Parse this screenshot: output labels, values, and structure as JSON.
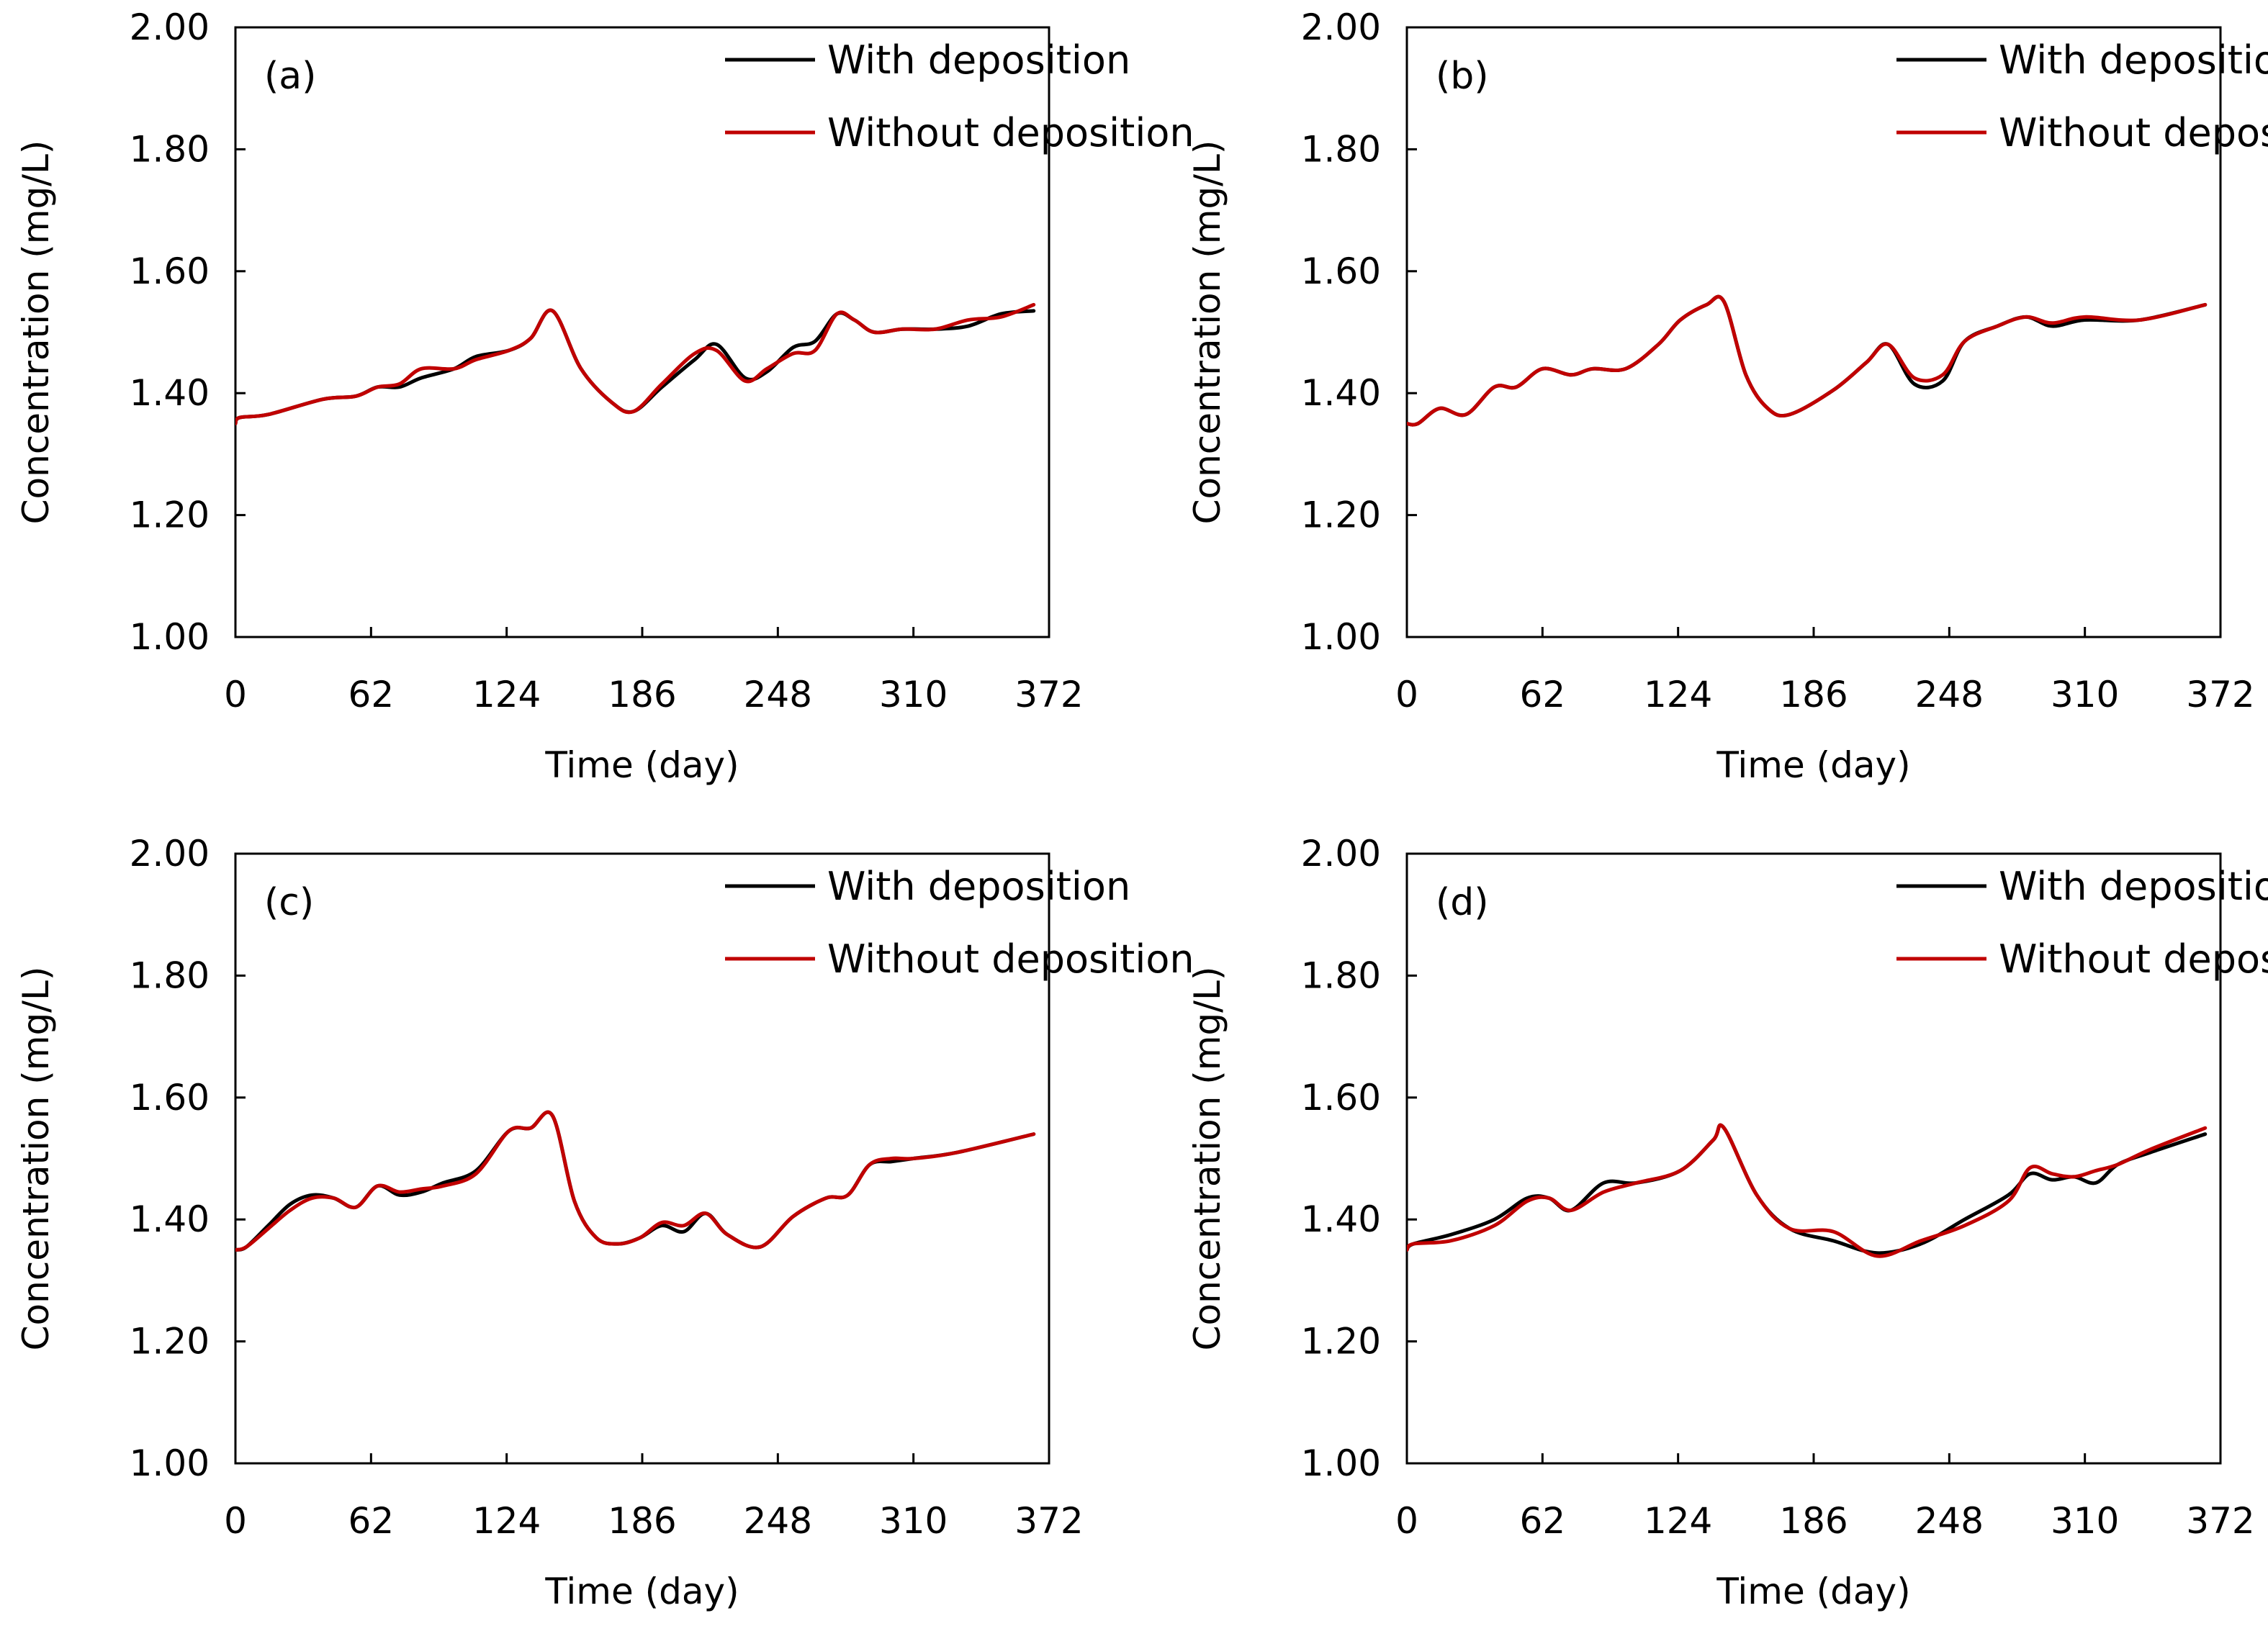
{
  "colors": {
    "with_deposition": "#000000",
    "without_deposition": "#c00000",
    "axes": "#000000",
    "background": "#ffffff"
  },
  "chart_data": [
    {
      "type": "line",
      "panel_label": "(a)",
      "xlabel": "Time (day)",
      "ylabel": "Concentration (mg/L)",
      "xlim": [
        0,
        372
      ],
      "ylim": [
        1.0,
        2.0
      ],
      "xticks": [
        "0",
        "62",
        "124",
        "186",
        "248",
        "310",
        "372"
      ],
      "yticks": [
        "1.00",
        "1.20",
        "1.40",
        "1.60",
        "1.80",
        "2.00"
      ],
      "grid": false,
      "legend_position": "top-right",
      "series": [
        {
          "name": "With deposition",
          "x": [
            0,
            2,
            15,
            40,
            55,
            65,
            75,
            85,
            100,
            110,
            125,
            135,
            145,
            158,
            172,
            182,
            195,
            210,
            220,
            233,
            243,
            255,
            265,
            275,
            283,
            292,
            305,
            320,
            335,
            350,
            365
          ],
          "y": [
            1.35,
            1.36,
            1.365,
            1.39,
            1.395,
            1.41,
            1.41,
            1.425,
            1.44,
            1.46,
            1.47,
            1.49,
            1.535,
            1.44,
            1.385,
            1.37,
            1.41,
            1.455,
            1.48,
            1.425,
            1.435,
            1.475,
            1.485,
            1.53,
            1.52,
            1.5,
            1.505,
            1.505,
            1.51,
            1.53,
            1.535
          ]
        },
        {
          "name": "Without deposition",
          "x": [
            0,
            2,
            15,
            40,
            55,
            65,
            75,
            85,
            100,
            110,
            125,
            135,
            145,
            158,
            172,
            182,
            195,
            210,
            220,
            233,
            243,
            255,
            265,
            275,
            283,
            292,
            305,
            320,
            335,
            350,
            365
          ],
          "y": [
            1.35,
            1.36,
            1.365,
            1.39,
            1.395,
            1.41,
            1.415,
            1.44,
            1.44,
            1.455,
            1.47,
            1.49,
            1.535,
            1.44,
            1.385,
            1.37,
            1.415,
            1.465,
            1.47,
            1.42,
            1.44,
            1.465,
            1.47,
            1.53,
            1.52,
            1.5,
            1.505,
            1.505,
            1.52,
            1.525,
            1.545
          ]
        }
      ]
    },
    {
      "type": "line",
      "panel_label": "(b)",
      "xlabel": "Time (day)",
      "ylabel": "Concentration (mg/L)",
      "xlim": [
        0,
        372
      ],
      "ylim": [
        1.0,
        2.0
      ],
      "xticks": [
        "0",
        "62",
        "124",
        "186",
        "248",
        "310",
        "372"
      ],
      "yticks": [
        "1.00",
        "1.20",
        "1.40",
        "1.60",
        "1.80",
        "2.00"
      ],
      "grid": false,
      "legend_position": "top-right",
      "series": [
        {
          "name": "With deposition",
          "x": [
            0,
            5,
            15,
            27,
            40,
            50,
            62,
            75,
            85,
            100,
            115,
            125,
            137,
            145,
            155,
            165,
            175,
            195,
            210,
            220,
            232,
            245,
            255,
            270,
            283,
            295,
            310,
            335,
            365
          ],
          "y": [
            1.35,
            1.35,
            1.375,
            1.365,
            1.41,
            1.41,
            1.44,
            1.43,
            1.44,
            1.44,
            1.48,
            1.52,
            1.545,
            1.55,
            1.43,
            1.375,
            1.365,
            1.405,
            1.45,
            1.48,
            1.415,
            1.42,
            1.485,
            1.51,
            1.525,
            1.51,
            1.52,
            1.52,
            1.545
          ]
        },
        {
          "name": "Without deposition",
          "x": [
            0,
            5,
            15,
            27,
            40,
            50,
            62,
            75,
            85,
            100,
            115,
            125,
            137,
            145,
            155,
            165,
            175,
            195,
            210,
            220,
            232,
            245,
            255,
            270,
            283,
            295,
            310,
            335,
            365
          ],
          "y": [
            1.35,
            1.35,
            1.375,
            1.365,
            1.41,
            1.41,
            1.44,
            1.43,
            1.44,
            1.44,
            1.48,
            1.52,
            1.545,
            1.55,
            1.43,
            1.375,
            1.365,
            1.405,
            1.45,
            1.48,
            1.425,
            1.43,
            1.485,
            1.51,
            1.525,
            1.515,
            1.525,
            1.52,
            1.545
          ]
        }
      ]
    },
    {
      "type": "line",
      "panel_label": "(c)",
      "xlabel": "Time (day)",
      "ylabel": "Concentration (mg/L)",
      "xlim": [
        0,
        372
      ],
      "ylim": [
        1.0,
        2.0
      ],
      "xticks": [
        "0",
        "62",
        "124",
        "186",
        "248",
        "310",
        "372"
      ],
      "yticks": [
        "1.00",
        "1.20",
        "1.40",
        "1.60",
        "1.80",
        "2.00"
      ],
      "grid": false,
      "legend_position": "top-right",
      "series": [
        {
          "name": "With deposition",
          "x": [
            0,
            5,
            15,
            25,
            35,
            45,
            55,
            65,
            75,
            85,
            95,
            110,
            125,
            135,
            145,
            155,
            165,
            175,
            185,
            195,
            205,
            215,
            225,
            240,
            255,
            270,
            280,
            290,
            300,
            310,
            330,
            365
          ],
          "y": [
            1.35,
            1.355,
            1.39,
            1.425,
            1.44,
            1.435,
            1.42,
            1.455,
            1.44,
            1.445,
            1.46,
            1.48,
            1.545,
            1.55,
            1.57,
            1.43,
            1.37,
            1.36,
            1.37,
            1.39,
            1.38,
            1.41,
            1.375,
            1.355,
            1.405,
            1.435,
            1.44,
            1.49,
            1.495,
            1.5,
            1.51,
            1.54
          ]
        },
        {
          "name": "Without deposition",
          "x": [
            0,
            5,
            15,
            25,
            35,
            45,
            55,
            65,
            75,
            85,
            95,
            110,
            125,
            135,
            145,
            155,
            165,
            175,
            185,
            195,
            205,
            215,
            225,
            240,
            255,
            270,
            280,
            290,
            300,
            310,
            330,
            365
          ],
          "y": [
            1.35,
            1.355,
            1.385,
            1.415,
            1.435,
            1.435,
            1.42,
            1.455,
            1.445,
            1.45,
            1.455,
            1.475,
            1.545,
            1.55,
            1.57,
            1.43,
            1.37,
            1.36,
            1.37,
            1.395,
            1.39,
            1.41,
            1.375,
            1.355,
            1.405,
            1.435,
            1.44,
            1.49,
            1.5,
            1.5,
            1.51,
            1.54
          ]
        }
      ]
    },
    {
      "type": "line",
      "panel_label": "(d)",
      "xlabel": "Time (day)",
      "ylabel": "Concentration (mg/L)",
      "xlim": [
        0,
        372
      ],
      "ylim": [
        1.0,
        2.0
      ],
      "xticks": [
        "0",
        "62",
        "124",
        "186",
        "248",
        "310",
        "372"
      ],
      "yticks": [
        "1.00",
        "1.20",
        "1.40",
        "1.60",
        "1.80",
        "2.00"
      ],
      "grid": false,
      "legend_position": "top-right",
      "series": [
        {
          "name": "With deposition",
          "x": [
            0,
            3,
            20,
            40,
            55,
            65,
            75,
            90,
            105,
            125,
            140,
            145,
            160,
            175,
            195,
            215,
            235,
            255,
            275,
            285,
            295,
            305,
            315,
            325,
            340,
            365
          ],
          "y": [
            1.35,
            1.36,
            1.375,
            1.4,
            1.435,
            1.435,
            1.415,
            1.46,
            1.46,
            1.48,
            1.53,
            1.55,
            1.44,
            1.385,
            1.365,
            1.345,
            1.36,
            1.4,
            1.44,
            1.475,
            1.465,
            1.47,
            1.46,
            1.49,
            1.51,
            1.54
          ]
        },
        {
          "name": "Without deposition",
          "x": [
            0,
            3,
            20,
            40,
            55,
            65,
            75,
            90,
            105,
            125,
            140,
            145,
            160,
            175,
            195,
            215,
            235,
            255,
            275,
            285,
            295,
            305,
            315,
            325,
            340,
            365
          ],
          "y": [
            1.35,
            1.36,
            1.365,
            1.39,
            1.43,
            1.435,
            1.415,
            1.445,
            1.46,
            1.48,
            1.53,
            1.55,
            1.44,
            1.385,
            1.38,
            1.34,
            1.365,
            1.39,
            1.43,
            1.485,
            1.475,
            1.47,
            1.48,
            1.49,
            1.515,
            1.55
          ]
        }
      ]
    }
  ]
}
